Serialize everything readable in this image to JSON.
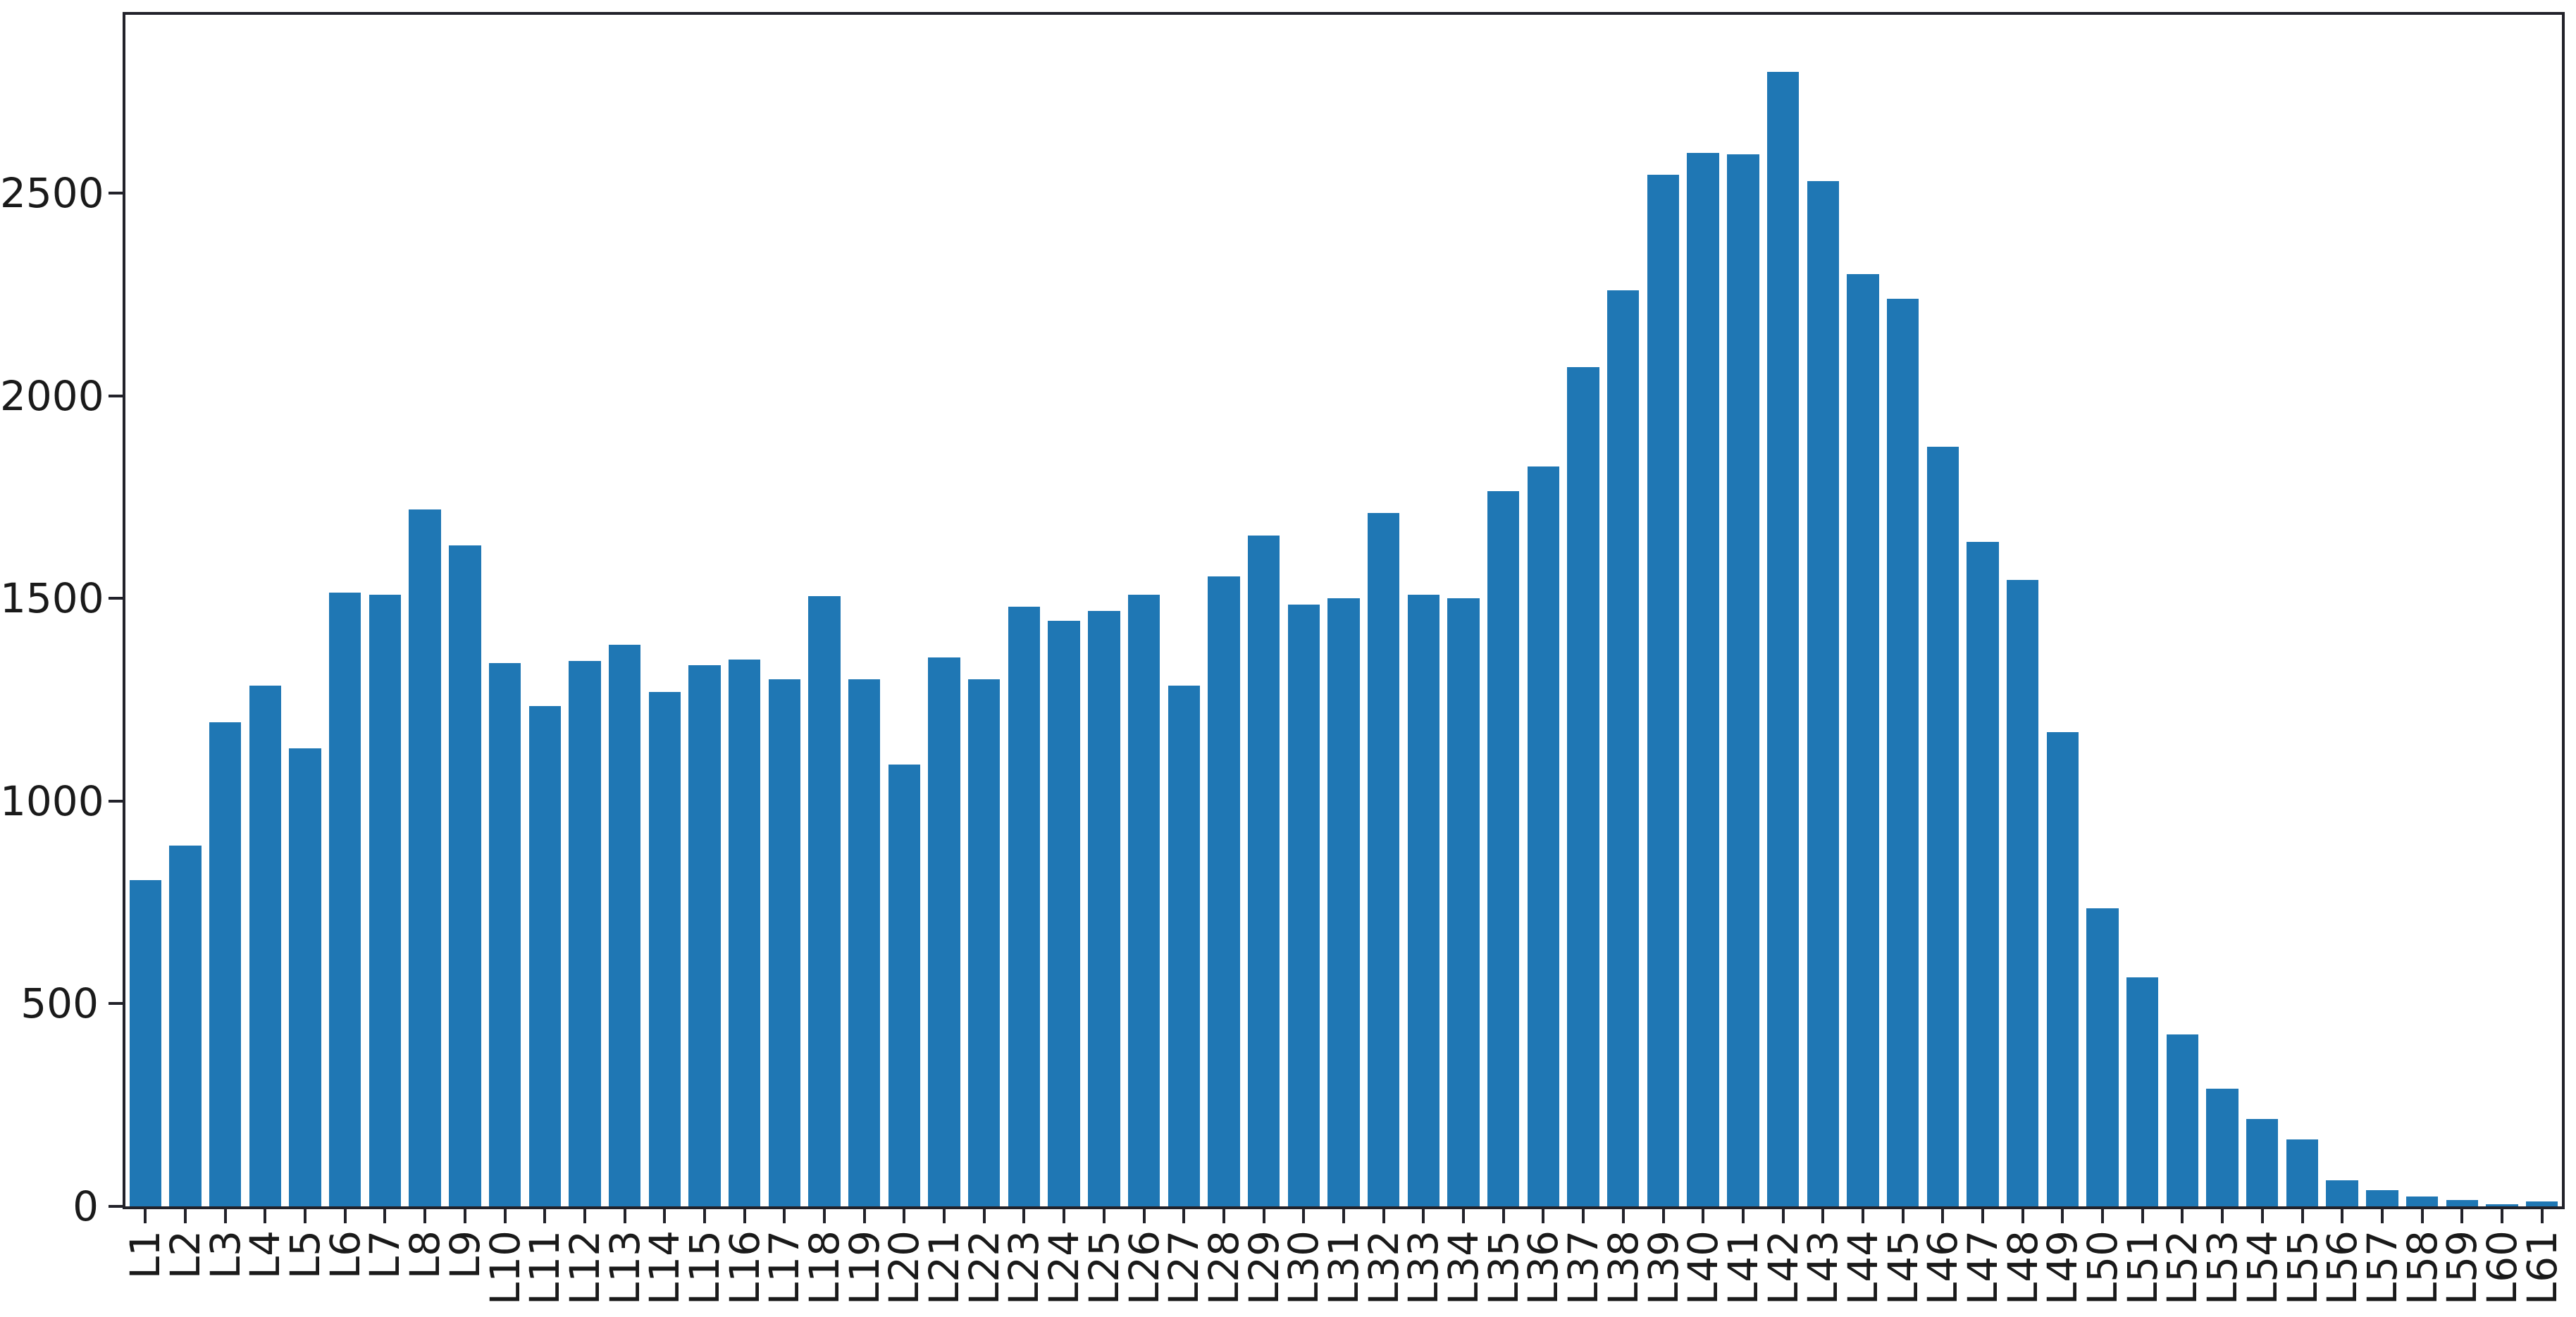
{
  "figure": {
    "background_color": "#ffffff",
    "axis_color": "#22222a",
    "bar_color": "#1f77b4"
  },
  "chart_data": {
    "type": "bar",
    "title": "",
    "xlabel": "",
    "ylabel": "",
    "grid": false,
    "legend": null,
    "xtick_rotation": 90,
    "yticks": [
      0,
      500,
      1000,
      1500,
      2000,
      2500
    ],
    "ylim": [
      0,
      2940
    ],
    "categories": [
      "L1",
      "L2",
      "L3",
      "L4",
      "L5",
      "L6",
      "L7",
      "L8",
      "L9",
      "L10",
      "L11",
      "L12",
      "L13",
      "L14",
      "L15",
      "L16",
      "L17",
      "L18",
      "L19",
      "L20",
      "L21",
      "L22",
      "L23",
      "L24",
      "L25",
      "L26",
      "L27",
      "L28",
      "L29",
      "L30",
      "L31",
      "L32",
      "L33",
      "L34",
      "L35",
      "L36",
      "L37",
      "L38",
      "L39",
      "L40",
      "L41",
      "L42",
      "L43",
      "L44",
      "L45",
      "L46",
      "L47",
      "L48",
      "L49",
      "L50",
      "L51",
      "L52",
      "L53",
      "L54",
      "L55",
      "L56",
      "L57",
      "L58",
      "L59",
      "L60",
      "L61"
    ],
    "values": [
      805,
      890,
      1195,
      1285,
      1130,
      1515,
      1510,
      1720,
      1630,
      1340,
      1235,
      1345,
      1385,
      1270,
      1335,
      1350,
      1300,
      1505,
      1300,
      1090,
      1355,
      1300,
      1480,
      1445,
      1470,
      1510,
      1285,
      1555,
      1655,
      1485,
      1500,
      1710,
      1510,
      1500,
      1765,
      1825,
      2070,
      2260,
      2545,
      2600,
      2595,
      2800,
      2530,
      2300,
      2240,
      1875,
      1640,
      1545,
      1170,
      735,
      565,
      425,
      290,
      215,
      165,
      65,
      40,
      25,
      15,
      5,
      12
    ]
  }
}
